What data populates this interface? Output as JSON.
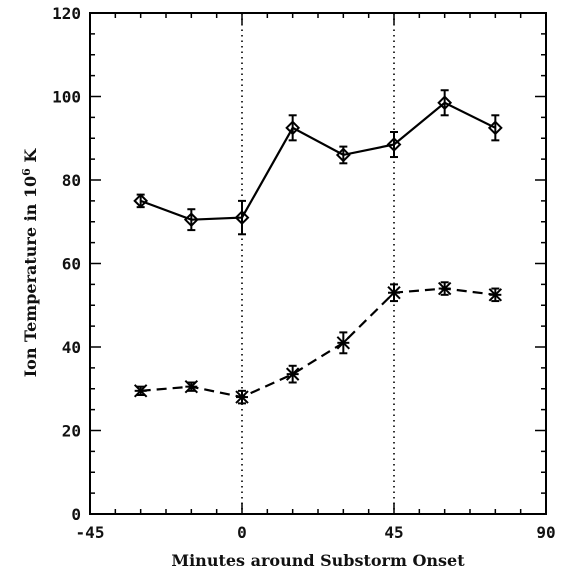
{
  "chart_data": {
    "type": "line",
    "xlabel": "Minutes around Substorm Onset",
    "ylabel_prefix": "Ion Temperature in 10",
    "ylabel_exp": "6",
    "ylabel_suffix": " K",
    "xlim": [
      -45,
      90
    ],
    "ylim": [
      0,
      120
    ],
    "xticks": [
      -45,
      0,
      45,
      90
    ],
    "yticks": [
      0,
      20,
      40,
      60,
      80,
      100,
      120
    ],
    "reference_lines_x": [
      0,
      45
    ],
    "grid": false,
    "series": [
      {
        "marker": "diamond",
        "line_style": "solid",
        "x": [
          -30,
          -15,
          0,
          15,
          30,
          45,
          60,
          75
        ],
        "y": [
          75,
          70.5,
          71,
          92.5,
          86,
          88.5,
          98.5,
          92.5
        ],
        "yerr": [
          1.5,
          2.5,
          4,
          3,
          2,
          3,
          3,
          3
        ]
      },
      {
        "marker": "asterisk",
        "line_style": "dashed",
        "x": [
          -30,
          -15,
          0,
          15,
          30,
          45,
          60,
          75
        ],
        "y": [
          29.5,
          30.5,
          28,
          33.5,
          41,
          53,
          54,
          52.5
        ],
        "yerr": [
          1,
          1,
          1.5,
          2,
          2.5,
          2,
          1.5,
          1.5
        ]
      }
    ]
  }
}
